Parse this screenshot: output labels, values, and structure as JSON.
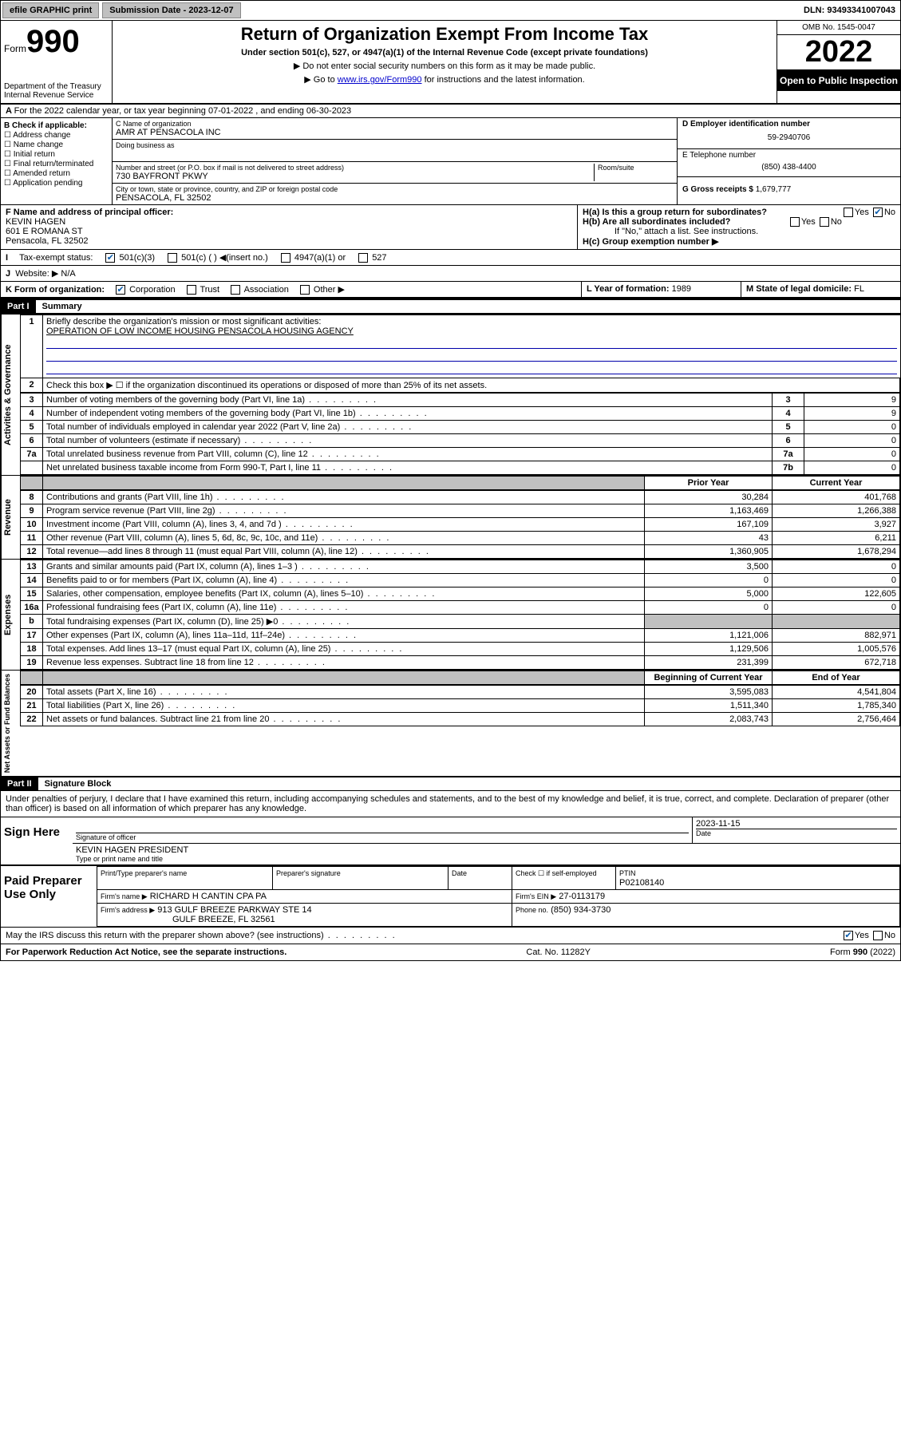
{
  "topbar": {
    "efile": "efile GRAPHIC print",
    "submission_label": "Submission Date - 2023-12-07",
    "dln": "DLN: 93493341007043"
  },
  "header": {
    "form_label": "Form",
    "form_no": "990",
    "dept": "Department of the Treasury",
    "irs": "Internal Revenue Service",
    "title": "Return of Organization Exempt From Income Tax",
    "sub": "Under section 501(c), 527, or 4947(a)(1) of the Internal Revenue Code (except private foundations)",
    "note1": "Do not enter social security numbers on this form as it may be made public.",
    "note2": "Go to www.irs.gov/Form990 for instructions and the latest information.",
    "link": "www.irs.gov/Form990",
    "omb": "OMB No. 1545-0047",
    "year": "2022",
    "inspect": "Open to Public Inspection"
  },
  "line_a": "For the 2022 calendar year, or tax year beginning 07-01-2022   , and ending 06-30-2023",
  "boxB": {
    "label": "B Check if applicable:",
    "items": [
      "Address change",
      "Name change",
      "Initial return",
      "Final return/terminated",
      "Amended return",
      "Application pending"
    ]
  },
  "boxC": {
    "name_label": "C Name of organization",
    "name": "AMR AT PENSACOLA INC",
    "dba_label": "Doing business as",
    "addr_label": "Number and street (or P.O. box if mail is not delivered to street address)",
    "room_label": "Room/suite",
    "addr": "730 BAYFRONT PKWY",
    "city_label": "City or town, state or province, country, and ZIP or foreign postal code",
    "city": "PENSACOLA, FL  32502"
  },
  "boxD": {
    "label": "D Employer identification number",
    "val": "59-2940706"
  },
  "boxE": {
    "label": "E Telephone number",
    "val": "(850) 438-4400"
  },
  "boxG": {
    "label": "G Gross receipts $",
    "val": "1,679,777"
  },
  "boxF": {
    "label": "F  Name and address of principal officer:",
    "name": "KEVIN HAGEN",
    "addr1": "601 E ROMANA ST",
    "addr2": "Pensacola, FL  32502"
  },
  "boxH": {
    "a": "H(a)  Is this a group return for subordinates?",
    "b": "H(b)  Are all subordinates included?",
    "note": "If \"No,\" attach a list. See instructions.",
    "c": "H(c)  Group exemption number ▶",
    "yes": "Yes",
    "no": "No"
  },
  "boxI": {
    "label": "Tax-exempt status:",
    "opts": [
      "501(c)(3)",
      "501(c) (  ) ◀(insert no.)",
      "4947(a)(1) or",
      "527"
    ]
  },
  "boxJ": {
    "label": "Website: ▶",
    "val": "N/A"
  },
  "boxK": {
    "label": "K Form of organization:",
    "opts": [
      "Corporation",
      "Trust",
      "Association",
      "Other ▶"
    ]
  },
  "boxL": {
    "label": "L Year of formation:",
    "val": "1989"
  },
  "boxM": {
    "label": "M State of legal domicile:",
    "val": "FL"
  },
  "part1": {
    "hdr": "Part I",
    "title": "Summary",
    "l1": "Briefly describe the organization's mission or most significant activities:",
    "mission": "OPERATION OF LOW INCOME HOUSING PENSACOLA HOUSING AGENCY",
    "l2": "Check this box ▶ ☐  if the organization discontinued its operations or disposed of more than 25% of its net assets.",
    "rows_gov": [
      {
        "n": "3",
        "t": "Number of voting members of the governing body (Part VI, line 1a)",
        "bn": "3",
        "v": "9"
      },
      {
        "n": "4",
        "t": "Number of independent voting members of the governing body (Part VI, line 1b)",
        "bn": "4",
        "v": "9"
      },
      {
        "n": "5",
        "t": "Total number of individuals employed in calendar year 2022 (Part V, line 2a)",
        "bn": "5",
        "v": "0"
      },
      {
        "n": "6",
        "t": "Total number of volunteers (estimate if necessary)",
        "bn": "6",
        "v": "0"
      },
      {
        "n": "7a",
        "t": "Total unrelated business revenue from Part VIII, column (C), line 12",
        "bn": "7a",
        "v": "0"
      },
      {
        "n": "",
        "t": "Net unrelated business taxable income from Form 990-T, Part I, line 11",
        "bn": "7b",
        "v": "0"
      }
    ],
    "col_prior": "Prior Year",
    "col_curr": "Current Year",
    "rows_rev": [
      {
        "n": "8",
        "t": "Contributions and grants (Part VIII, line 1h)",
        "p": "30,284",
        "c": "401,768"
      },
      {
        "n": "9",
        "t": "Program service revenue (Part VIII, line 2g)",
        "p": "1,163,469",
        "c": "1,266,388"
      },
      {
        "n": "10",
        "t": "Investment income (Part VIII, column (A), lines 3, 4, and 7d )",
        "p": "167,109",
        "c": "3,927"
      },
      {
        "n": "11",
        "t": "Other revenue (Part VIII, column (A), lines 5, 6d, 8c, 9c, 10c, and 11e)",
        "p": "43",
        "c": "6,211"
      },
      {
        "n": "12",
        "t": "Total revenue—add lines 8 through 11 (must equal Part VIII, column (A), line 12)",
        "p": "1,360,905",
        "c": "1,678,294"
      }
    ],
    "rows_exp": [
      {
        "n": "13",
        "t": "Grants and similar amounts paid (Part IX, column (A), lines 1–3 )",
        "p": "3,500",
        "c": "0"
      },
      {
        "n": "14",
        "t": "Benefits paid to or for members (Part IX, column (A), line 4)",
        "p": "0",
        "c": "0"
      },
      {
        "n": "15",
        "t": "Salaries, other compensation, employee benefits (Part IX, column (A), lines 5–10)",
        "p": "5,000",
        "c": "122,605"
      },
      {
        "n": "16a",
        "t": "Professional fundraising fees (Part IX, column (A), line 11e)",
        "p": "0",
        "c": "0"
      },
      {
        "n": "b",
        "t": "Total fundraising expenses (Part IX, column (D), line 25) ▶0",
        "p": "",
        "c": "",
        "grey": true
      },
      {
        "n": "17",
        "t": "Other expenses (Part IX, column (A), lines 11a–11d, 11f–24e)",
        "p": "1,121,006",
        "c": "882,971"
      },
      {
        "n": "18",
        "t": "Total expenses. Add lines 13–17 (must equal Part IX, column (A), line 25)",
        "p": "1,129,506",
        "c": "1,005,576"
      },
      {
        "n": "19",
        "t": "Revenue less expenses. Subtract line 18 from line 12",
        "p": "231,399",
        "c": "672,718"
      }
    ],
    "col_boy": "Beginning of Current Year",
    "col_eoy": "End of Year",
    "rows_na": [
      {
        "n": "20",
        "t": "Total assets (Part X, line 16)",
        "p": "3,595,083",
        "c": "4,541,804"
      },
      {
        "n": "21",
        "t": "Total liabilities (Part X, line 26)",
        "p": "1,511,340",
        "c": "1,785,340"
      },
      {
        "n": "22",
        "t": "Net assets or fund balances. Subtract line 21 from line 20",
        "p": "2,083,743",
        "c": "2,756,464"
      }
    ],
    "side_gov": "Activities & Governance",
    "side_rev": "Revenue",
    "side_exp": "Expenses",
    "side_na": "Net Assets or Fund Balances"
  },
  "part2": {
    "hdr": "Part II",
    "title": "Signature Block",
    "decl": "Under penalties of perjury, I declare that I have examined this return, including accompanying schedules and statements, and to the best of my knowledge and belief, it is true, correct, and complete. Declaration of preparer (other than officer) is based on all information of which preparer has any knowledge.",
    "sign_here": "Sign Here",
    "sig_officer": "Signature of officer",
    "sig_date": "2023-11-15",
    "date_label": "Date",
    "officer": "KEVIN HAGEN  PRESIDENT",
    "officer_label": "Type or print name and title",
    "paid": "Paid Preparer Use Only",
    "prep_name_label": "Print/Type preparer's name",
    "prep_sig_label": "Preparer's signature",
    "self_emp": "Check ☐ if self-employed",
    "ptin_label": "PTIN",
    "ptin": "P02108140",
    "firm_name_label": "Firm's name   ▶",
    "firm_name": "RICHARD H CANTIN CPA PA",
    "firm_ein_label": "Firm's EIN ▶",
    "firm_ein": "27-0113179",
    "firm_addr_label": "Firm's address ▶",
    "firm_addr": "913 GULF BREEZE PARKWAY STE 14",
    "firm_addr2": "GULF BREEZE, FL  32561",
    "phone_label": "Phone no.",
    "phone": "(850) 934-3730",
    "discuss": "May the IRS discuss this return with the preparer shown above? (see instructions)"
  },
  "footer": {
    "pra": "For Paperwork Reduction Act Notice, see the separate instructions.",
    "cat": "Cat. No. 11282Y",
    "form": "Form 990 (2022)"
  }
}
